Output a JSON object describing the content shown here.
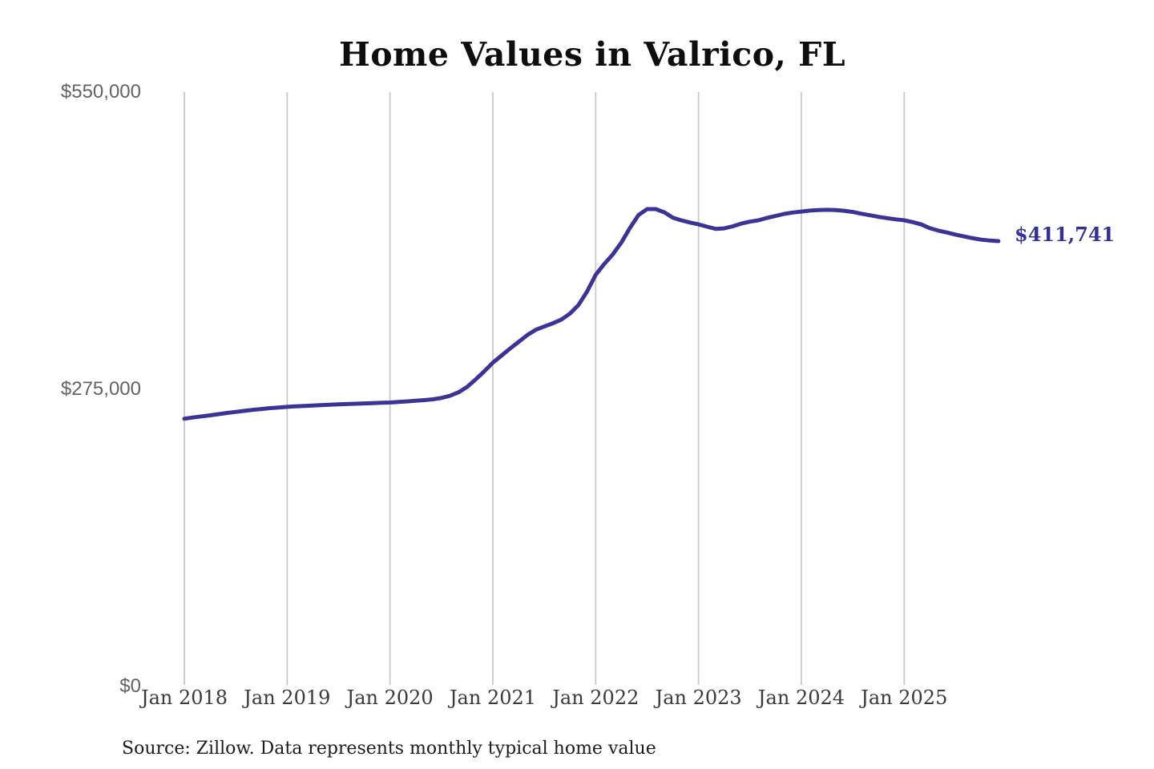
{
  "page": {
    "background": "#ffffff"
  },
  "chart_data": {
    "type": "line",
    "title": "Home Values in Valrico, FL",
    "source_note": "Source: Zillow. Data represents monthly typical home value",
    "series_name": "Monthly typical home value",
    "x_start": "2018-01",
    "x_end": "2025-12",
    "x_tick_labels": [
      "Jan 2018",
      "Jan 2019",
      "Jan 2020",
      "Jan 2021",
      "Jan 2022",
      "Jan 2023",
      "Jan 2024",
      "Jan 2025"
    ],
    "y_tick_labels": [
      "$550,000",
      "$275,000",
      "$0"
    ],
    "y_ticks": [
      550000,
      275000,
      0
    ],
    "ylim": [
      0,
      550000
    ],
    "grid": "vertical-only",
    "legend": "none",
    "end_label": "$411,741",
    "latest_value": 411741,
    "line_color": "#3b3498",
    "end_label_color": "#33309b",
    "gridline_color": "#c9c9c9",
    "values": [
      247000,
      248100,
      249100,
      250100,
      251200,
      252300,
      253300,
      254300,
      255200,
      256000,
      256800,
      257400,
      258000,
      258400,
      258800,
      259200,
      259600,
      260000,
      260300,
      260600,
      260900,
      261200,
      261500,
      261800,
      262000,
      262500,
      263000,
      263600,
      264200,
      265000,
      266200,
      268200,
      271500,
      276500,
      283500,
      291000,
      299000,
      305500,
      312000,
      318200,
      324500,
      329500,
      332500,
      335500,
      339000,
      344500,
      352500,
      365000,
      380500,
      390500,
      399500,
      410500,
      424000,
      436000,
      441500,
      441500,
      438500,
      433500,
      431000,
      429000,
      427300,
      425100,
      423100,
      423600,
      425500,
      428000,
      429800,
      431100,
      433300,
      435100,
      437000,
      438300,
      439200,
      440100,
      440600,
      440800,
      440500,
      439900,
      438800,
      437200,
      435800,
      434300,
      433100,
      432000,
      431100,
      429400,
      427200,
      423700,
      421500,
      419700,
      417800,
      416100,
      414400,
      413100,
      412300,
      411741
    ]
  }
}
